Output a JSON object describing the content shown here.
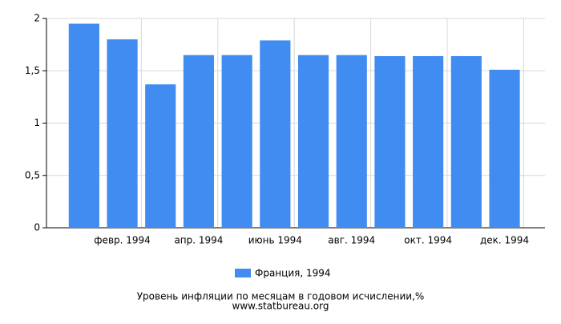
{
  "chart_data": {
    "type": "bar",
    "title": "Уровень инфляции по месяцам в годовом исчислении,%",
    "subtitle": "www.statbureau.org",
    "categories": [
      null,
      "февр. 1994",
      null,
      "апр. 1994",
      null,
      "июнь 1994",
      null,
      "авг. 1994",
      null,
      "окт. 1994",
      null,
      "дек. 1994"
    ],
    "series": [
      {
        "name": "Франция, 1994",
        "color": "#418cf0",
        "values": [
          1.95,
          1.8,
          1.37,
          1.65,
          1.65,
          1.79,
          1.65,
          1.65,
          1.64,
          1.64,
          1.64,
          1.51
        ]
      }
    ],
    "ylim": [
      0,
      2
    ],
    "yticks": [
      0,
      {
        "value": 0.5,
        "label": "0,5"
      },
      1,
      {
        "value": 1.5,
        "label": "1,5"
      },
      2
    ],
    "grid": true
  }
}
